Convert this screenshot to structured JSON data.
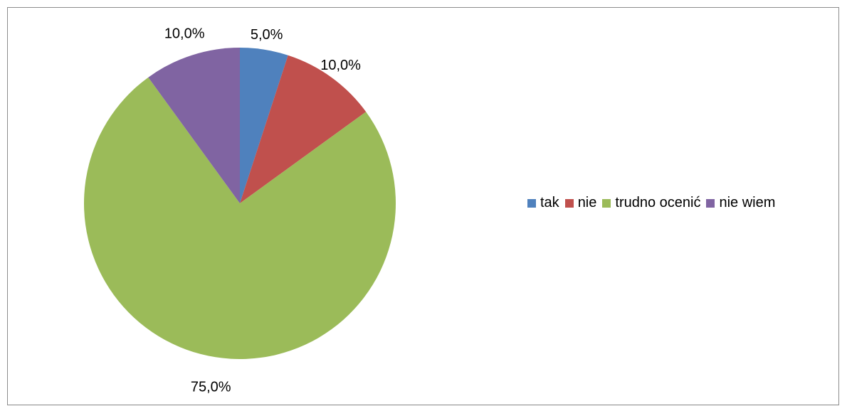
{
  "chart_data": {
    "type": "pie",
    "title": "",
    "categories": [
      "tak",
      "nie",
      "trudno ocenić",
      "nie wiem"
    ],
    "values": [
      5.0,
      10.0,
      75.0,
      10.0
    ],
    "data_labels": [
      "5,0%",
      "10,0%",
      "75,0%",
      "10,0%"
    ],
    "colors": [
      "#4f81bd",
      "#c0504d",
      "#9bbb59",
      "#8064a2"
    ],
    "start_angle": "12 o'clock",
    "direction": "clockwise",
    "legend": "right"
  }
}
